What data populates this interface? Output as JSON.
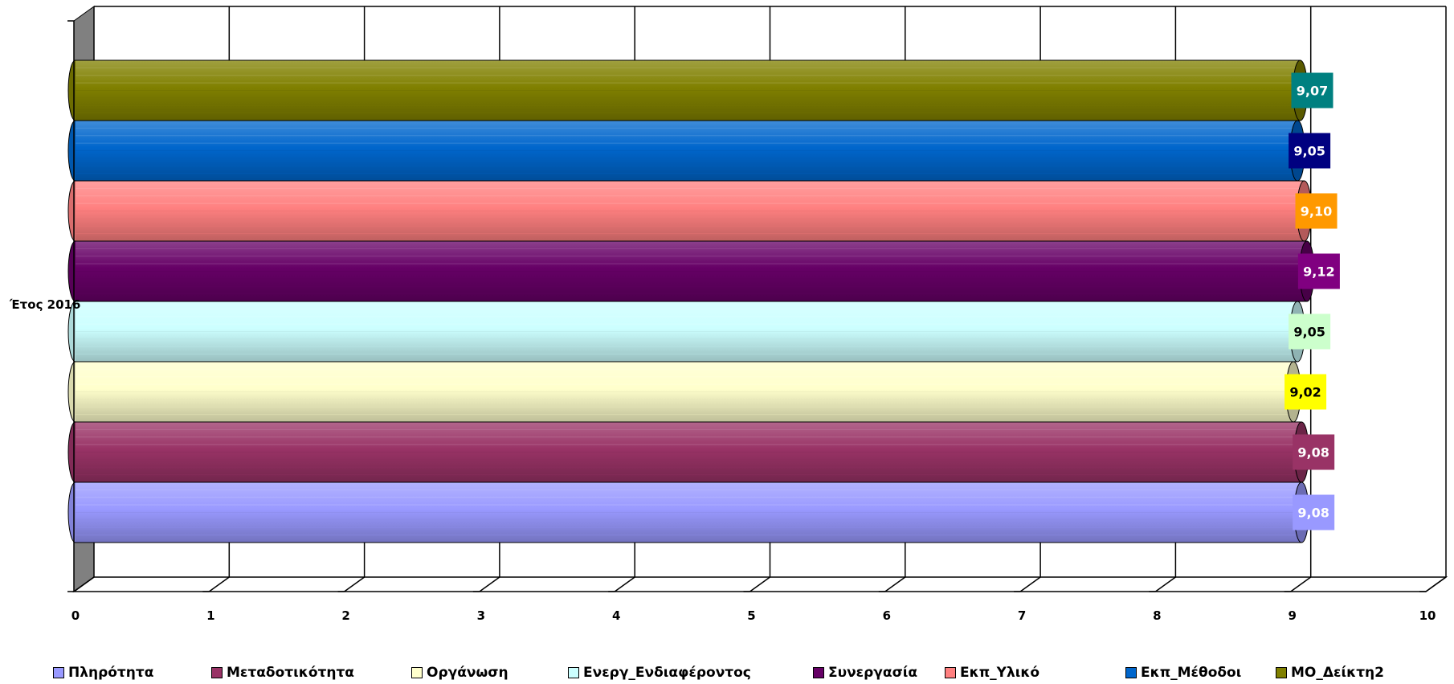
{
  "chart_data": {
    "type": "bar",
    "orientation": "horizontal",
    "categories": [
      "Έτος 2016"
    ],
    "xlim": [
      0,
      10
    ],
    "x_ticks": [
      "0",
      "1",
      "2",
      "3",
      "4",
      "5",
      "6",
      "7",
      "8",
      "9",
      "10"
    ],
    "grid": "vertical",
    "legend_position": "bottom",
    "series": [
      {
        "name": "Πληρότητα",
        "value": 9.08,
        "label": "9,08",
        "color": "#9999ff",
        "label_bg": "#9999ff",
        "label_color": "#ffffff"
      },
      {
        "name": "Μεταδοτικότητα",
        "value": 9.08,
        "label": "9,08",
        "color": "#993366",
        "label_bg": "#993366",
        "label_color": "#ffffff"
      },
      {
        "name": "Οργάνωση",
        "value": 9.02,
        "label": "9,02",
        "color": "#ffffcc",
        "label_bg": "#ffff00",
        "label_color": "#000000"
      },
      {
        "name": "Ενεργ_Ενδιαφέροντος",
        "value": 9.05,
        "label": "9,05",
        "color": "#ccffff",
        "label_bg": "#ccffcc",
        "label_color": "#000000"
      },
      {
        "name": "Συνεργασία",
        "value": 9.12,
        "label": "9,12",
        "color": "#660066",
        "label_bg": "#800080",
        "label_color": "#ffffff"
      },
      {
        "name": "Εκπ_Υλικό",
        "value": 9.1,
        "label": "9,10",
        "color": "#ff8080",
        "label_bg": "#ff9900",
        "label_color": "#ffffff"
      },
      {
        "name": "Εκπ_Μέθοδοι",
        "value": 9.05,
        "label": "9,05",
        "color": "#0066cc",
        "label_bg": "#000080",
        "label_color": "#ffffff"
      },
      {
        "name": "ΜΟ_Δείκτη2",
        "value": 9.07,
        "label": "9,07",
        "color": "#808000",
        "label_bg": "#008080",
        "label_color": "#ffffff"
      }
    ]
  }
}
